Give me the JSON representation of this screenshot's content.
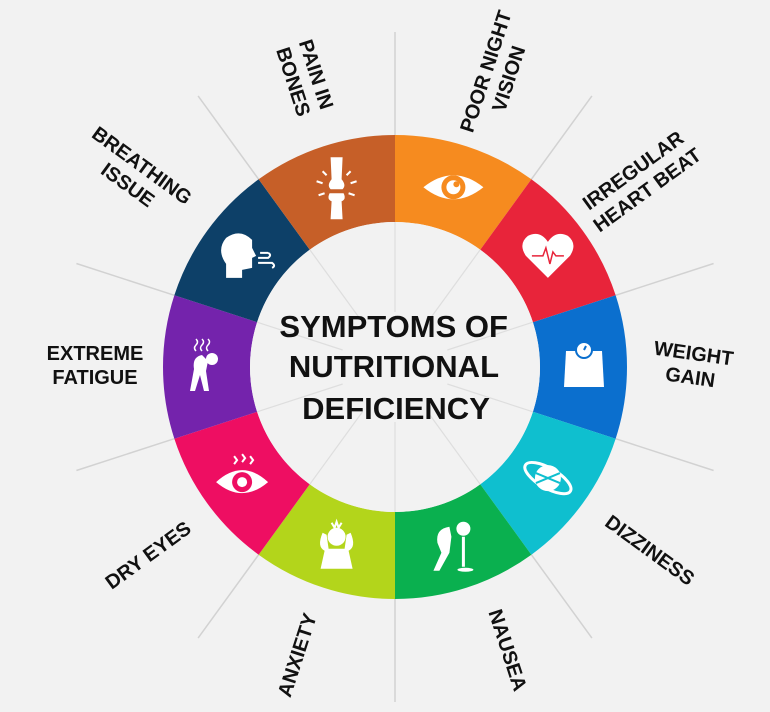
{
  "title": {
    "lines": [
      "SYMPTOMS OF",
      "NUTRITIONAL",
      "DEFICIENCY"
    ]
  },
  "background_color": "#f2f2f2",
  "segments": [
    {
      "label_lines": [
        "POOR NIGHT",
        "VISION"
      ],
      "color": "#f68b1f",
      "icon": "eye-icon"
    },
    {
      "label_lines": [
        "IRREGULAR",
        "HEART BEAT"
      ],
      "color": "#e8243a",
      "icon": "heartbeat-icon"
    },
    {
      "label_lines": [
        "WEIGHT",
        "GAIN"
      ],
      "color": "#0b6fce",
      "icon": "weighing-scale-icon"
    },
    {
      "label_lines": [
        "DIZZINESS"
      ],
      "color": "#0fbfcf",
      "icon": "dizziness-orbit-icon"
    },
    {
      "label_lines": [
        "NAUSEA"
      ],
      "color": "#0ab04f",
      "icon": "vomiting-person-icon"
    },
    {
      "label_lines": [
        "ANXIETY"
      ],
      "color": "#b3d51b",
      "icon": "stressed-person-icon"
    },
    {
      "label_lines": [
        "DRY EYES"
      ],
      "color": "#ee0e62",
      "icon": "irritated-eye-icon"
    },
    {
      "label_lines": [
        "EXTREME",
        "FATIGUE"
      ],
      "color": "#7423ac",
      "icon": "tired-person-icon"
    },
    {
      "label_lines": [
        "BREATHING",
        "ISSUE"
      ],
      "color": "#0d4068",
      "icon": "breathing-head-icon"
    },
    {
      "label_lines": [
        "PAIN IN",
        "BONES"
      ],
      "color": "#c65f28",
      "icon": "bone-joint-icon"
    }
  ]
}
